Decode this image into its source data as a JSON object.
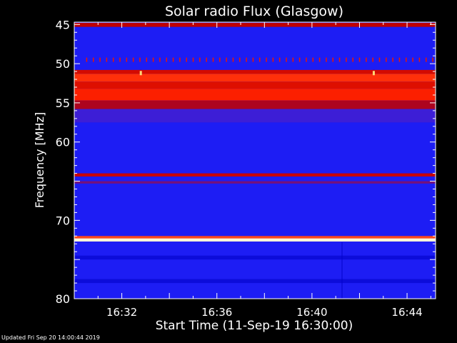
{
  "chart_data": {
    "type": "heatmap",
    "title": "Solar radio Flux (Glasgow)",
    "xlabel": "Start Time (11-Sep-19 16:30:00)",
    "ylabel": "Frequency [MHz]",
    "x_unit": "minutes after 16:30:00",
    "xlim": [
      0,
      15.2
    ],
    "ylim": [
      80,
      44.7
    ],
    "x_ticks": [
      {
        "value": 2,
        "label": "16:32"
      },
      {
        "value": 6,
        "label": "16:36"
      },
      {
        "value": 10,
        "label": "16:40"
      },
      {
        "value": 14,
        "label": "16:44"
      }
    ],
    "y_ticks": [
      {
        "value": 45,
        "label": "45"
      },
      {
        "value": 50,
        "label": "50"
      },
      {
        "value": 55,
        "label": "55"
      },
      {
        "value": 60,
        "label": "60"
      },
      {
        "value": 70,
        "label": "70"
      },
      {
        "value": 80,
        "label": "80"
      }
    ],
    "y_minor_step": 1,
    "colormap": [
      "#000000",
      "#0000c8",
      "#2424ff",
      "#c00000",
      "#ff2000",
      "#ffe880",
      "#ffffff"
    ],
    "background_intensity": 0.3,
    "bands": [
      {
        "freq_min": 44.8,
        "freq_max": 45.3,
        "intensity": 0.5
      },
      {
        "freq_min": 50.8,
        "freq_max": 51.3,
        "intensity": 0.55
      },
      {
        "freq_min": 51.3,
        "freq_max": 52.3,
        "intensity": 0.68
      },
      {
        "freq_min": 52.3,
        "freq_max": 53.2,
        "intensity": 0.58
      },
      {
        "freq_min": 53.2,
        "freq_max": 54.7,
        "intensity": 0.66
      },
      {
        "freq_min": 54.7,
        "freq_max": 55.8,
        "intensity": 0.48
      },
      {
        "freq_min": 55.8,
        "freq_max": 57.5,
        "intensity": 0.36
      },
      {
        "freq_min": 64.0,
        "freq_max": 64.4,
        "intensity": 0.52
      },
      {
        "freq_min": 65.0,
        "freq_max": 65.3,
        "intensity": 0.42
      },
      {
        "freq_min": 72.3,
        "freq_max": 72.7,
        "intensity": 0.95
      },
      {
        "freq_min": 72.0,
        "freq_max": 72.3,
        "intensity": 0.7
      },
      {
        "freq_min": 74.5,
        "freq_max": 75.0,
        "intensity": 0.22
      },
      {
        "freq_min": 77.5,
        "freq_max": 78.0,
        "intensity": 0.22
      }
    ],
    "tick_artifacts": {
      "freq": 49.5,
      "start": 0.5,
      "step": 0.28,
      "intensity": 0.62
    },
    "spikes": [
      {
        "x": 2.8,
        "freq": 51.2,
        "intensity": 0.82
      },
      {
        "x": 12.6,
        "freq": 51.2,
        "intensity": 0.82
      }
    ],
    "vertical_streaks": [
      {
        "x": 11.25,
        "freq_min": 72.8,
        "freq_max": 80,
        "intensity": 0.18
      }
    ]
  },
  "footer": {
    "updated": "Updated Fri Sep 20 14:00:44 2019"
  }
}
